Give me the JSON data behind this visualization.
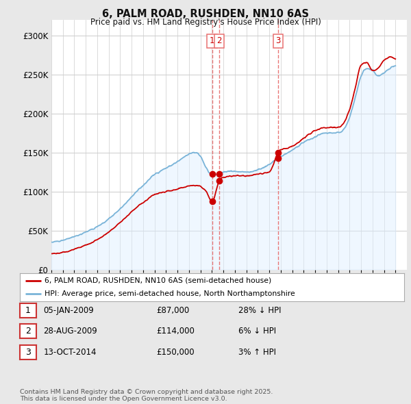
{
  "title": "6, PALM ROAD, RUSHDEN, NN10 6AS",
  "subtitle": "Price paid vs. HM Land Registry's House Price Index (HPI)",
  "background_color": "#e8e8e8",
  "plot_bg_color": "#ffffff",
  "ylim": [
    0,
    320000
  ],
  "yticks": [
    0,
    50000,
    100000,
    150000,
    200000,
    250000,
    300000
  ],
  "ytick_labels": [
    "£0",
    "£50K",
    "£100K",
    "£150K",
    "£200K",
    "£250K",
    "£300K"
  ],
  "sale_year_nums": [
    2009.01,
    2009.65,
    2014.79
  ],
  "sale_prices": [
    87000,
    114000,
    150000
  ],
  "sale_labels": [
    "1",
    "2",
    "3"
  ],
  "vline_color": "#e87070",
  "legend_line1": "6, PALM ROAD, RUSHDEN, NN10 6AS (semi-detached house)",
  "legend_line2": "HPI: Average price, semi-detached house, North Northamptonshire",
  "table_entries": [
    {
      "num": "1",
      "date": "05-JAN-2009",
      "price": "£87,000",
      "hpi": "28% ↓ HPI"
    },
    {
      "num": "2",
      "date": "28-AUG-2009",
      "price": "£114,000",
      "hpi": "6% ↓ HPI"
    },
    {
      "num": "3",
      "date": "13-OCT-2014",
      "price": "£150,000",
      "hpi": "3% ↑ HPI"
    }
  ],
  "footer": "Contains HM Land Registry data © Crown copyright and database right 2025.\nThis data is licensed under the Open Government Licence v3.0.",
  "hpi_color": "#7ab4d8",
  "price_color": "#cc0000",
  "grid_color": "#cccccc",
  "title_color": "#111111",
  "box_border_color": "#cc3333",
  "hpi_bg_color": "#ddeeff"
}
